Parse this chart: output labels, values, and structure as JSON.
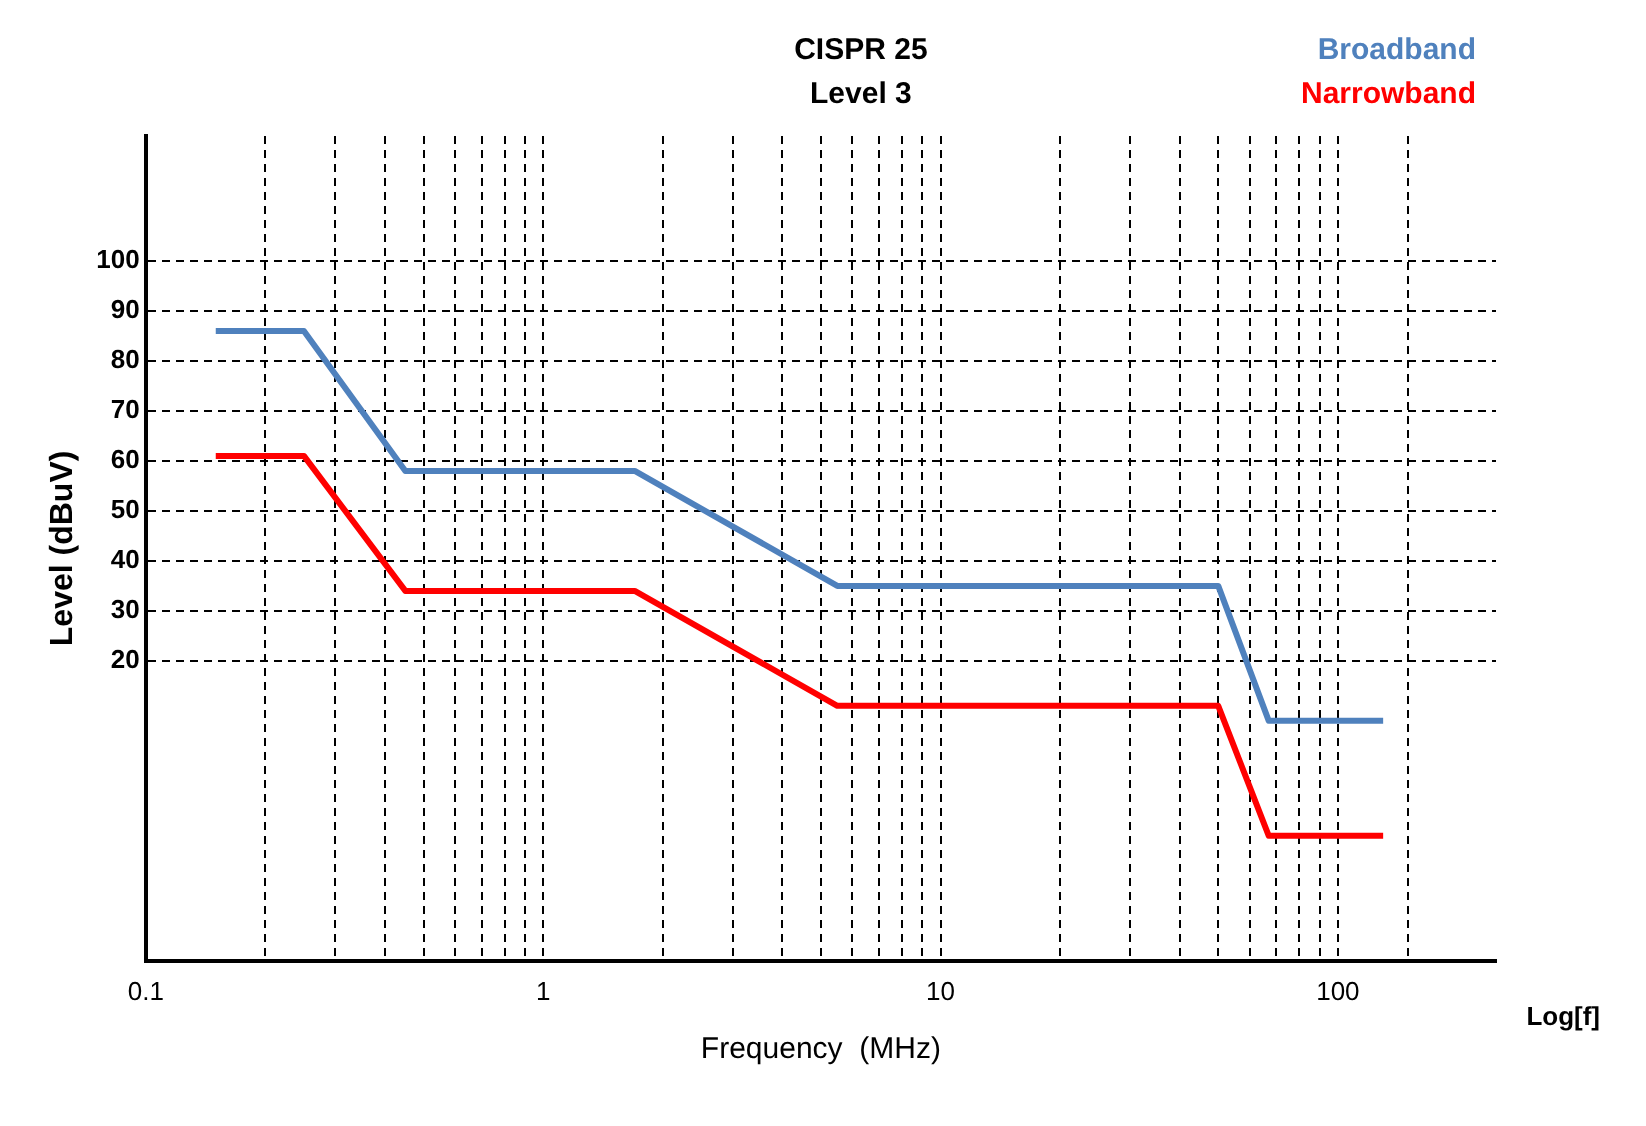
{
  "chart_data": {
    "type": "line",
    "title": "CISPR 25",
    "subtitle": "Level 3",
    "xlabel": "Frequency  (MHz)",
    "ylabel": "Level (dBuV)",
    "annotations": [
      "Log[f]"
    ],
    "log": "x",
    "grid": true,
    "legend": "top right",
    "marker": "none",
    "line_style": "solid",
    "xlim": [
      0.1,
      250
    ],
    "xticks": [
      0.1,
      {
        "value": 0.2,
        "label": null
      },
      {
        "value": 0.3,
        "label": null
      },
      {
        "value": 0.4,
        "label": null
      },
      {
        "value": 0.5,
        "label": null
      },
      {
        "value": 0.6,
        "label": null
      },
      {
        "value": 0.7,
        "label": null
      },
      {
        "value": 0.8,
        "label": null
      },
      {
        "value": 0.9,
        "label": null
      },
      1,
      {
        "value": 2,
        "label": null
      },
      {
        "value": 3,
        "label": null
      },
      {
        "value": 4,
        "label": null
      },
      {
        "value": 5,
        "label": null
      },
      {
        "value": 6,
        "label": null
      },
      {
        "value": 7,
        "label": null
      },
      {
        "value": 8,
        "label": null
      },
      {
        "value": 9,
        "label": null
      },
      10,
      {
        "value": 20,
        "label": null
      },
      {
        "value": 30,
        "label": null
      },
      {
        "value": 40,
        "label": null
      },
      {
        "value": 50,
        "label": null
      },
      {
        "value": 60,
        "label": null
      },
      {
        "value": 70,
        "label": null
      },
      {
        "value": 80,
        "label": null
      },
      {
        "value": 90,
        "label": null
      },
      100,
      {
        "value": 150,
        "label": null
      }
    ],
    "ylim": [
      -40,
      125
    ],
    "yticks": [
      20,
      30,
      40,
      50,
      60,
      70,
      80,
      90,
      100
    ],
    "series": [
      {
        "name": "Broadband",
        "color": "#4f81bd",
        "x": [
          0.15,
          0.25,
          0.45,
          1.7,
          5.5,
          50,
          67,
          130
        ],
        "values": [
          86,
          86,
          58,
          58,
          35,
          35,
          8,
          8
        ]
      },
      {
        "name": "Narrowband",
        "color": "#ff0000",
        "x": [
          0.15,
          0.25,
          0.45,
          1.7,
          5.5,
          50,
          67,
          130
        ],
        "values": [
          61,
          61,
          34,
          34,
          11,
          11,
          -15,
          -15
        ]
      }
    ]
  }
}
